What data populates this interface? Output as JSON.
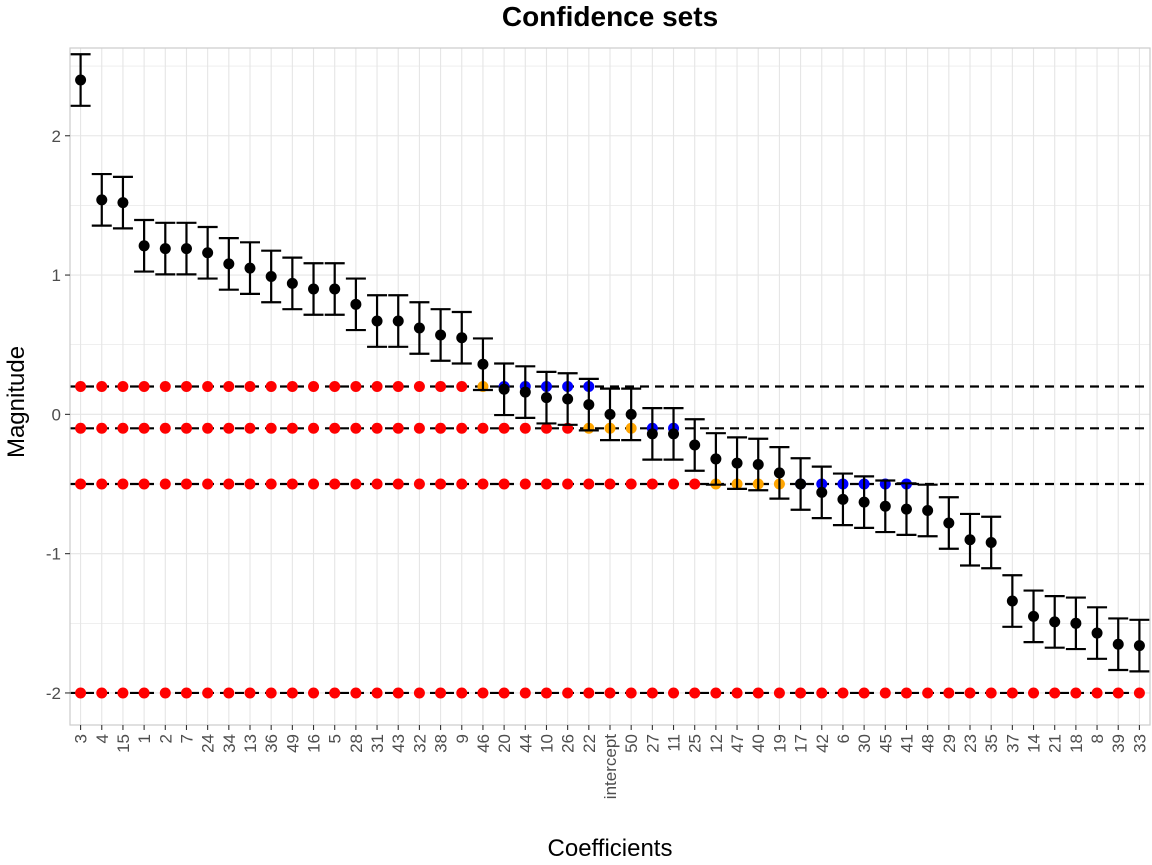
{
  "chart_data": {
    "type": "scatter",
    "title": "Confidence sets",
    "xlabel": "Coefficients",
    "ylabel": "Magnitude",
    "ylim": [
      -2.23,
      2.63
    ],
    "yticks": [
      -2,
      -1,
      0,
      1,
      2
    ],
    "ytick_labels": [
      "-2",
      "-1",
      "0",
      "1",
      "2"
    ],
    "grid": true,
    "categories": [
      "3",
      "4",
      "15",
      "1",
      "2",
      "7",
      "24",
      "34",
      "13",
      "36",
      "49",
      "16",
      "5",
      "28",
      "31",
      "43",
      "32",
      "38",
      "9",
      "46",
      "20",
      "44",
      "10",
      "26",
      "22",
      "intercept",
      "50",
      "27",
      "11",
      "25",
      "12",
      "47",
      "40",
      "19",
      "17",
      "42",
      "6",
      "30",
      "45",
      "41",
      "48",
      "29",
      "23",
      "35",
      "37",
      "14",
      "21",
      "18",
      "8",
      "39",
      "33"
    ],
    "estimates": [
      2.4,
      1.54,
      1.52,
      1.21,
      1.19,
      1.19,
      1.16,
      1.08,
      1.05,
      0.99,
      0.94,
      0.9,
      0.9,
      0.79,
      0.67,
      0.67,
      0.62,
      0.57,
      0.55,
      0.36,
      0.18,
      0.16,
      0.12,
      0.11,
      0.07,
      0.0,
      0.0,
      -0.14,
      -0.14,
      -0.22,
      -0.32,
      -0.35,
      -0.36,
      -0.42,
      -0.5,
      -0.56,
      -0.61,
      -0.63,
      -0.66,
      -0.68,
      -0.69,
      -0.78,
      -0.9,
      -0.92,
      -1.34,
      -1.45,
      -1.49,
      -1.5,
      -1.57,
      -1.65,
      -1.66
    ],
    "ci_half_width": 0.185,
    "thresholds": [
      0.2,
      -0.1,
      -0.5,
      -2.0
    ],
    "colors": {
      "estimate": "#000000",
      "below": "#ff0000",
      "within": "#ffa500",
      "above": "#0000ff",
      "threshold_line": "#000000",
      "grid": "#e5e5e5",
      "panel_border": "#cccccc"
    },
    "threshold_points": [
      {
        "threshold": 0.2,
        "red_end": 18,
        "orange": [
          19
        ],
        "blue": [
          20,
          21,
          22,
          23,
          24
        ],
        "black_start": 25
      },
      {
        "threshold": -0.1,
        "red_end": 23,
        "orange": [
          24,
          25,
          26
        ],
        "blue": [
          27,
          28
        ],
        "black_start": 29
      },
      {
        "threshold": -0.5,
        "red_end": 29,
        "orange": [
          30,
          31,
          32,
          33
        ],
        "blue": [
          34,
          35,
          36,
          37,
          38,
          39
        ],
        "black_start": 40
      },
      {
        "threshold": -2.0,
        "red_end": 50,
        "orange": [],
        "blue": [],
        "black_start": 51
      }
    ]
  }
}
